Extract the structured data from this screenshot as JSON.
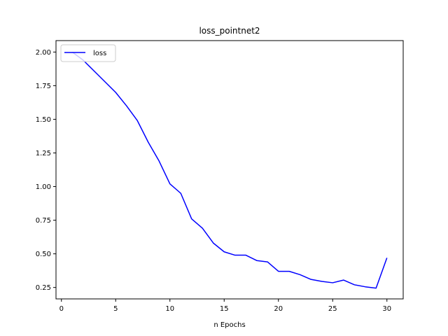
{
  "chart_data": {
    "type": "line",
    "title": "loss_pointnet2",
    "xlabel": "n Epochs",
    "ylabel": "",
    "xlim": [
      -0.5,
      31.5
    ],
    "ylim": [
      0.165,
      2.085
    ],
    "xticks": [
      0,
      5,
      10,
      15,
      20,
      25,
      30
    ],
    "yticks": [
      0.25,
      0.5,
      0.75,
      1.0,
      1.25,
      1.5,
      1.75,
      2.0
    ],
    "ytick_labels": [
      "0.25",
      "0.50",
      "0.75",
      "1.00",
      "1.25",
      "1.50",
      "1.75",
      "2.00"
    ],
    "xtick_labels": [
      "0",
      "5",
      "10",
      "15",
      "20",
      "25",
      "30"
    ],
    "grid": false,
    "legend_position": "top-left",
    "series": [
      {
        "name": "loss",
        "color": "#0000ff",
        "x": [
          1,
          2,
          3,
          4,
          5,
          6,
          7,
          8,
          9,
          10,
          11,
          12,
          13,
          14,
          15,
          16,
          17,
          18,
          19,
          20,
          21,
          22,
          23,
          24,
          25,
          26,
          27,
          28,
          29,
          30
        ],
        "y": [
          2.0,
          1.94,
          1.86,
          1.78,
          1.7,
          1.6,
          1.49,
          1.33,
          1.19,
          1.02,
          0.95,
          0.76,
          0.69,
          0.58,
          0.515,
          0.49,
          0.49,
          0.45,
          0.44,
          0.37,
          0.37,
          0.345,
          0.31,
          0.295,
          0.285,
          0.305,
          0.27,
          0.255,
          0.245,
          0.47
        ]
      }
    ]
  }
}
